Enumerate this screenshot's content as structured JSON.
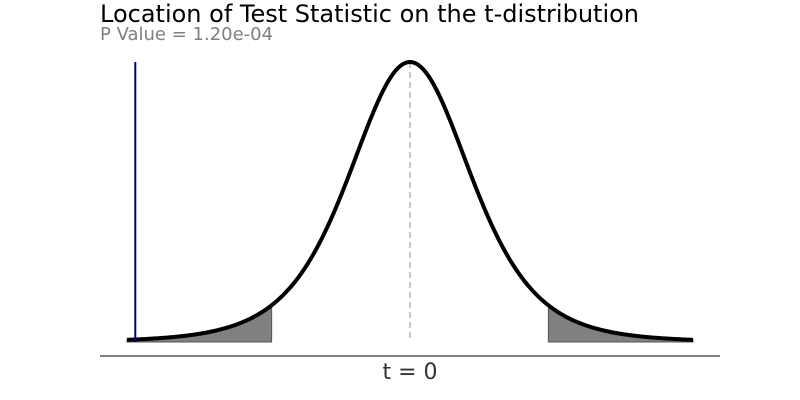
{
  "chart_data": {
    "type": "area",
    "title": "Location of Test Statistic on the t-distribution",
    "subtitle": "P Value = 1.20e-04",
    "xlabel": "",
    "ylabel": "",
    "x_tick_labels": [
      {
        "x": 0,
        "label": "t = 0"
      }
    ],
    "xlim": [
      -4.5,
      4.5
    ],
    "ylim": [
      0,
      0.4
    ],
    "grid": false,
    "legend": "none",
    "curve": {
      "name": "",
      "distribution": "t",
      "color": "#000000"
    },
    "test_statistic": {
      "x": -4.4,
      "color": "#000080"
    },
    "center_line": {
      "x": 0,
      "color": "#c8c8c8",
      "style": "dashed"
    },
    "shaded_tails": [
      {
        "from": -4.5,
        "to": -2.2,
        "color": "#808080"
      },
      {
        "from": 2.2,
        "to": 4.5,
        "color": "#808080"
      }
    ]
  }
}
